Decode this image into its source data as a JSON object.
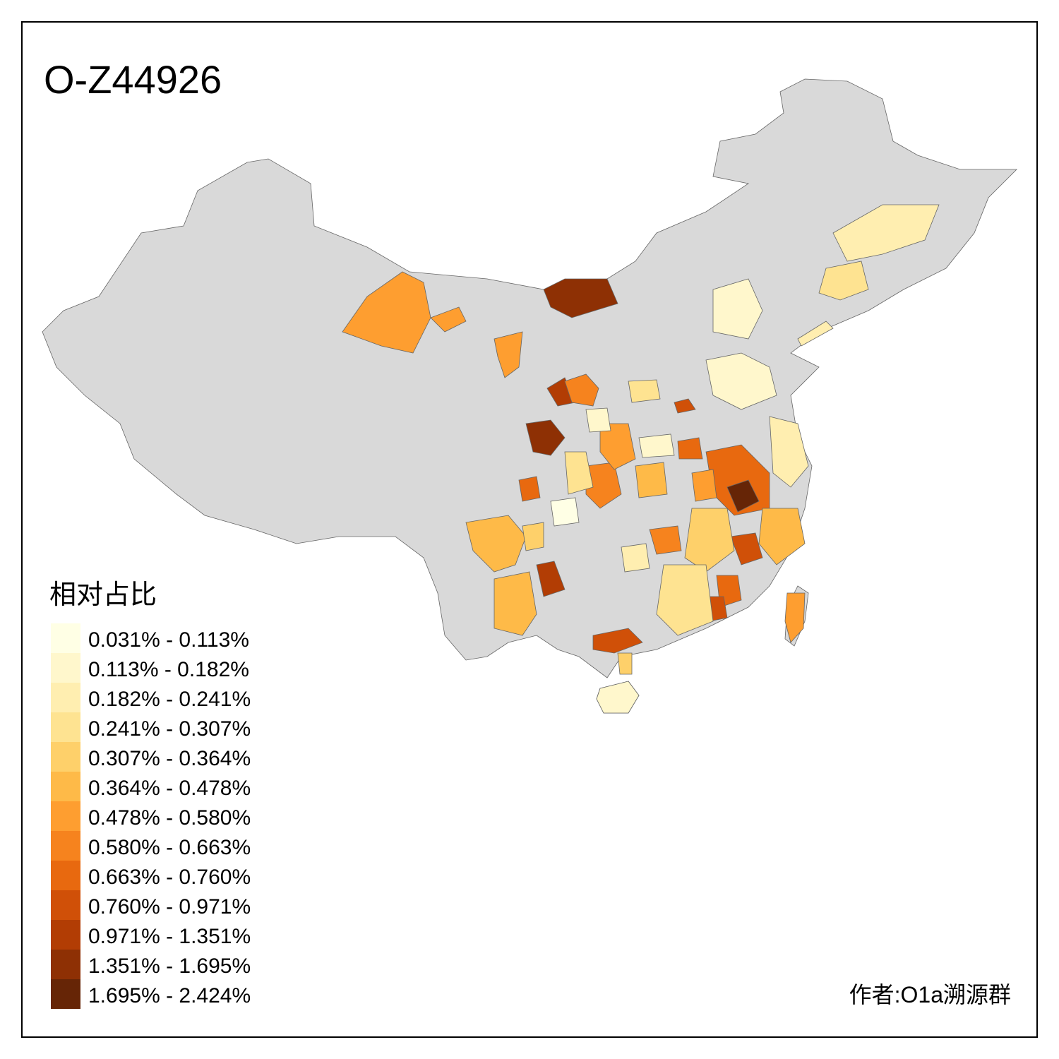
{
  "header": {
    "title": "O-Z44926"
  },
  "legend": {
    "title": "相对占比",
    "items": [
      {
        "label": "0.031% - 0.113%",
        "color": "#FFFFE5"
      },
      {
        "label": "0.113% - 0.182%",
        "color": "#FFF7CC"
      },
      {
        "label": "0.182% - 0.241%",
        "color": "#FFEEB0"
      },
      {
        "label": "0.241% - 0.307%",
        "color": "#FEE391"
      },
      {
        "label": "0.307% - 0.364%",
        "color": "#FED06A"
      },
      {
        "label": "0.364% - 0.478%",
        "color": "#FEBA48"
      },
      {
        "label": "0.478% - 0.580%",
        "color": "#FE9E30"
      },
      {
        "label": "0.580% - 0.663%",
        "color": "#F6831E"
      },
      {
        "label": "0.663% - 0.760%",
        "color": "#E8690F"
      },
      {
        "label": "0.760% - 0.971%",
        "color": "#D05008"
      },
      {
        "label": "0.971% - 1.351%",
        "color": "#B23D04"
      },
      {
        "label": "1.351% - 1.695%",
        "color": "#8E3004"
      },
      {
        "label": "1.695% - 2.424%",
        "color": "#662506"
      }
    ]
  },
  "footer": {
    "author": "作者:O1a溯源群"
  }
}
